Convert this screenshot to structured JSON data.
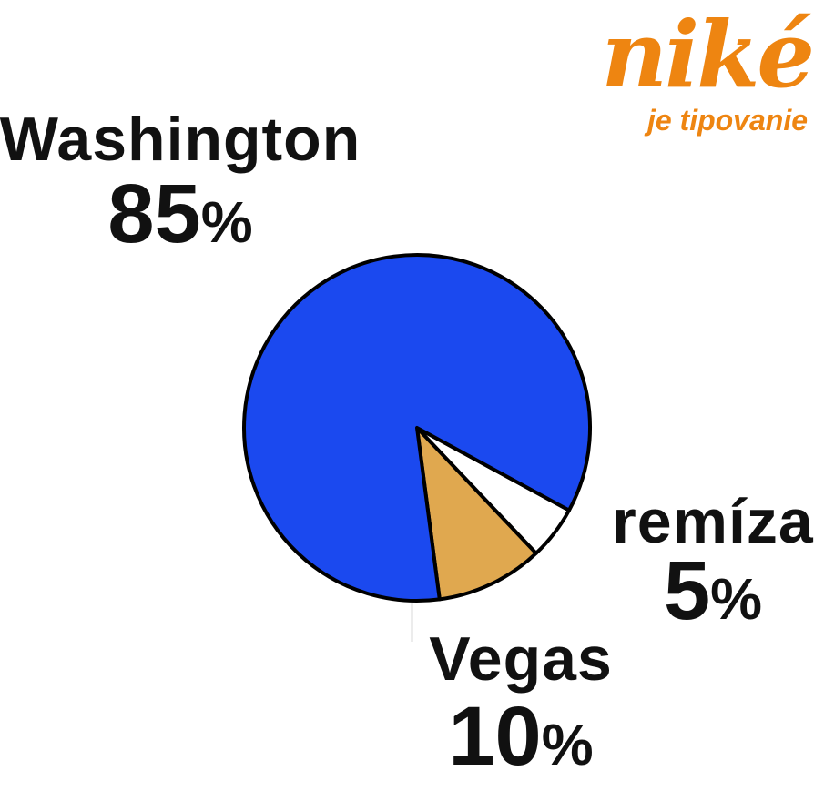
{
  "logo": {
    "brand": "niké",
    "tagline": "je tipovanie",
    "color": "#ee8511"
  },
  "chart_data": {
    "type": "pie",
    "title": "",
    "unit": "%",
    "start_angle_deg": 28.5,
    "direction": "clockwise",
    "outline_color": "#000000",
    "outline_width": 4,
    "legend": "none",
    "labels_position": "outside",
    "slices": [
      {
        "label": "remíza",
        "value": 5,
        "color": "#ffffff"
      },
      {
        "label": "Vegas",
        "value": 10,
        "color": "#e0a84f"
      },
      {
        "label": "Washington",
        "value": 85,
        "color": "#1b49ef"
      }
    ]
  }
}
